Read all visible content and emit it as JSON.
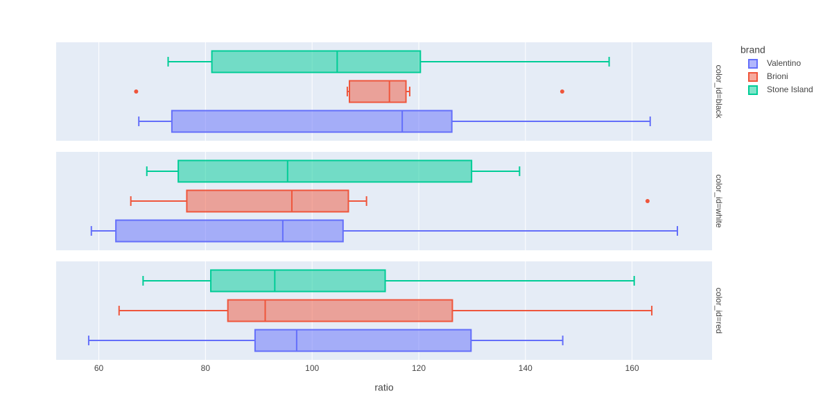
{
  "chart_data": {
    "type": "box",
    "orientation": "horizontal",
    "xlabel": "ratio",
    "xlim": [
      52,
      175
    ],
    "xticks": [
      60,
      80,
      100,
      120,
      140,
      160
    ],
    "grid": true,
    "legend": {
      "title": "brand",
      "placement": "top-right",
      "entries": [
        "Valentino",
        "Brioni",
        "Stone Island"
      ]
    },
    "colors": {
      "Valentino": "#636efa",
      "Brioni": "#ef553b",
      "Stone Island": "#00cc96",
      "plot_bg": "#e5ecf6",
      "grid": "#ffffff",
      "text": "#444444"
    },
    "facets": [
      {
        "label": "color_id=black",
        "series": [
          {
            "name": "Stone Island",
            "lowerfence": 73,
            "q1": 81.2,
            "median": 104.7,
            "q3": 120.3,
            "upperfence": 155.7,
            "outliers": []
          },
          {
            "name": "Brioni",
            "lowerfence": 106.6,
            "q1": 107,
            "median": 114.5,
            "q3": 117.6,
            "upperfence": 118.3,
            "outliers": [
              67,
              146.9
            ]
          },
          {
            "name": "Valentino",
            "lowerfence": 67.5,
            "q1": 73.7,
            "median": 116.9,
            "q3": 126.2,
            "upperfence": 163.4,
            "outliers": []
          }
        ]
      },
      {
        "label": "color_id=white",
        "series": [
          {
            "name": "Stone Island",
            "lowerfence": 69,
            "q1": 74.9,
            "median": 95.4,
            "q3": 129.9,
            "upperfence": 138.9,
            "outliers": []
          },
          {
            "name": "Brioni",
            "lowerfence": 66,
            "q1": 76.5,
            "median": 96.2,
            "q3": 106.8,
            "upperfence": 110.2,
            "outliers": [
              162.9
            ]
          },
          {
            "name": "Valentino",
            "lowerfence": 58.6,
            "q1": 63.2,
            "median": 94.5,
            "q3": 105.8,
            "upperfence": 168.5,
            "outliers": []
          }
        ]
      },
      {
        "label": "color_id=red",
        "series": [
          {
            "name": "Stone Island",
            "lowerfence": 68.3,
            "q1": 81,
            "median": 93,
            "q3": 113.7,
            "upperfence": 160.4,
            "outliers": []
          },
          {
            "name": "Brioni",
            "lowerfence": 63.8,
            "q1": 84.2,
            "median": 91.2,
            "q3": 126.3,
            "upperfence": 163.7,
            "outliers": []
          },
          {
            "name": "Valentino",
            "lowerfence": 58.1,
            "q1": 89.3,
            "median": 97.1,
            "q3": 129.8,
            "upperfence": 147,
            "outliers": []
          }
        ]
      }
    ]
  }
}
